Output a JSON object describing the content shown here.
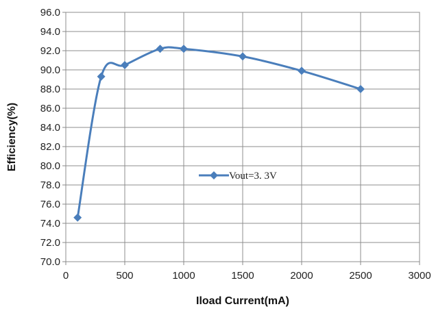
{
  "chart_data": {
    "type": "line",
    "title": "",
    "xlabel": "Iload Current(mA)",
    "ylabel": "Efficiency(%)",
    "xlim": [
      0,
      3000
    ],
    "ylim": [
      70.0,
      96.0
    ],
    "xticks": [
      "0",
      "500",
      "1000",
      "1500",
      "2000",
      "2500",
      "3000"
    ],
    "yticks": [
      "70.0",
      "72.0",
      "74.0",
      "76.0",
      "78.0",
      "80.0",
      "82.0",
      "84.0",
      "86.0",
      "88.0",
      "90.0",
      "92.0",
      "94.0",
      "96.0"
    ],
    "grid": true,
    "legend": "center",
    "series": [
      {
        "name": "Vout=3. 3V",
        "color": "#4a7ebb",
        "marker": "diamond",
        "x": [
          100,
          300,
          500,
          800,
          1000,
          1500,
          2000,
          2500
        ],
        "y": [
          74.6,
          89.3,
          90.5,
          92.2,
          92.2,
          91.4,
          89.9,
          88.0
        ]
      }
    ]
  }
}
